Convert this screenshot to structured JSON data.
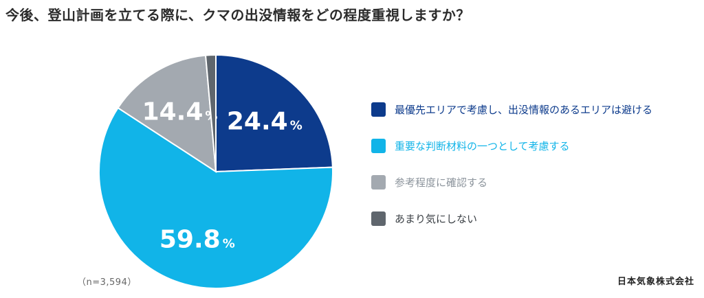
{
  "title": "今後、登山計画を立てる際に、クマの出没情報をどの程度重視しますか？",
  "sample_note": "（n=3,594）",
  "source": "日本気象株式会社",
  "chart_data": {
    "type": "pie",
    "title": "今後、登山計画を立てる際に、クマの出没情報をどの程度重視しますか？",
    "unit": "%",
    "start": "12 o'clock, clockwise",
    "legend_position": "right",
    "slices": [
      {
        "label": "最優先エリアで考慮し、出没情報のあるエリアは避ける",
        "value": 24.4,
        "display": "24.4",
        "color": "#0d3b8c",
        "label_color": "#0d3b8c",
        "show_label": true
      },
      {
        "label": "重要な判断材料の一つとして考慮する",
        "value": 59.8,
        "display": "59.8",
        "color": "#11b4e8",
        "label_color": "#11b4e8",
        "show_label": true
      },
      {
        "label": "参考程度に確認する",
        "value": 14.4,
        "display": "14.4",
        "color": "#a3a9b0",
        "label_color": "#8c949c",
        "show_label": true
      },
      {
        "label": "あまり気にしない",
        "value": 1.4,
        "display": "",
        "color": "#5f666d",
        "label_color": "#3a3f44",
        "show_label": false
      }
    ]
  }
}
